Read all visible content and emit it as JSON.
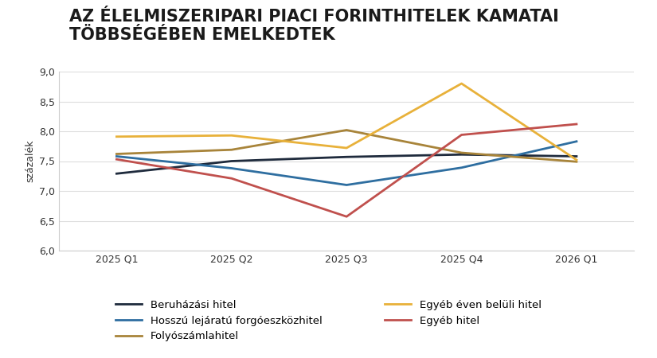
{
  "chart_data": {
    "type": "line",
    "title": "AZ ÉLELMISZERIPARI PIACI FORINTHITELEK KAMATAI\nTÖBBSÉGÉBEN EMELKEDTEK",
    "y_label": "százalék",
    "categories": [
      "2025 Q1",
      "2025 Q2",
      "2025 Q3",
      "2025 Q4",
      "2026 Q1"
    ],
    "series": [
      {
        "name": "Beruházási hitel",
        "color": "#1f2b3d",
        "values": [
          7.29,
          7.5,
          7.57,
          7.61,
          7.58
        ]
      },
      {
        "name": "Hosszú lejáratú forgóeszközhitel",
        "color": "#2e6ea0",
        "values": [
          7.58,
          7.38,
          7.1,
          7.39,
          7.83
        ]
      },
      {
        "name": "Folyószámlahitel",
        "color": "#a8843a",
        "values": [
          7.62,
          7.69,
          8.02,
          7.64,
          7.49
        ]
      },
      {
        "name": "Egyéb éven belüli hitel",
        "color": "#e8b13a",
        "values": [
          7.91,
          7.93,
          7.72,
          8.8,
          7.52
        ]
      },
      {
        "name": "Egyéb hitel",
        "color": "#c0504d",
        "values": [
          7.53,
          7.21,
          6.57,
          7.94,
          8.12
        ]
      }
    ],
    "ylim": [
      6.0,
      9.0
    ],
    "yticks": [
      {
        "value": 6.0,
        "label": "6,0"
      },
      {
        "value": 6.5,
        "label": "6,5"
      },
      {
        "value": 7.0,
        "label": "7,0"
      },
      {
        "value": 7.5,
        "label": "7,5"
      },
      {
        "value": 8.0,
        "label": "8,0"
      },
      {
        "value": 8.5,
        "label": "8,5"
      },
      {
        "value": 9.0,
        "label": "9,0"
      }
    ],
    "grid": true,
    "legend": "lower center"
  }
}
